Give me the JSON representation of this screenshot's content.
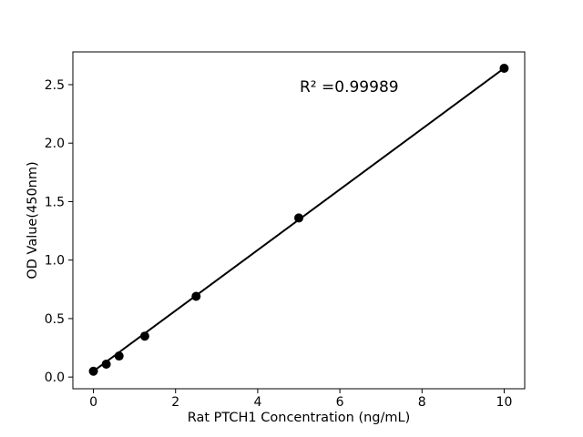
{
  "figure": {
    "background": "#ffffff"
  },
  "chart_data": {
    "type": "scatter",
    "title": "",
    "xlabel": "Rat PTCH1 Concentration (ng/mL)",
    "ylabel": "OD Value(450nm)",
    "annotation": "R² =0.99989",
    "series": [
      {
        "name": "standard-curve-points",
        "x": [
          0,
          0.3125,
          0.625,
          1.25,
          2.5,
          5,
          10
        ],
        "y": [
          0.05,
          0.11,
          0.18,
          0.35,
          0.69,
          1.36,
          2.64
        ]
      }
    ],
    "fit_line": {
      "x1": 0,
      "y1": 0.05,
      "x2": 10,
      "y2": 2.64
    },
    "xticks": {
      "values": [
        0,
        2,
        4,
        6,
        8,
        10
      ],
      "labels": [
        "0",
        "2",
        "4",
        "6",
        "8",
        "10"
      ]
    },
    "yticks": {
      "values": [
        0,
        0.5,
        1.0,
        1.5,
        2.0,
        2.5
      ],
      "labels": [
        "0.0",
        "0.5",
        "1.0",
        "1.5",
        "2.0",
        "2.5"
      ]
    },
    "xlim": [
      -0.5,
      10.5
    ],
    "ylim": [
      -0.1,
      2.78
    ],
    "grid": false,
    "legend": false,
    "marker_color": "#000000",
    "line_color": "#000000",
    "spine_color": "#000000"
  }
}
